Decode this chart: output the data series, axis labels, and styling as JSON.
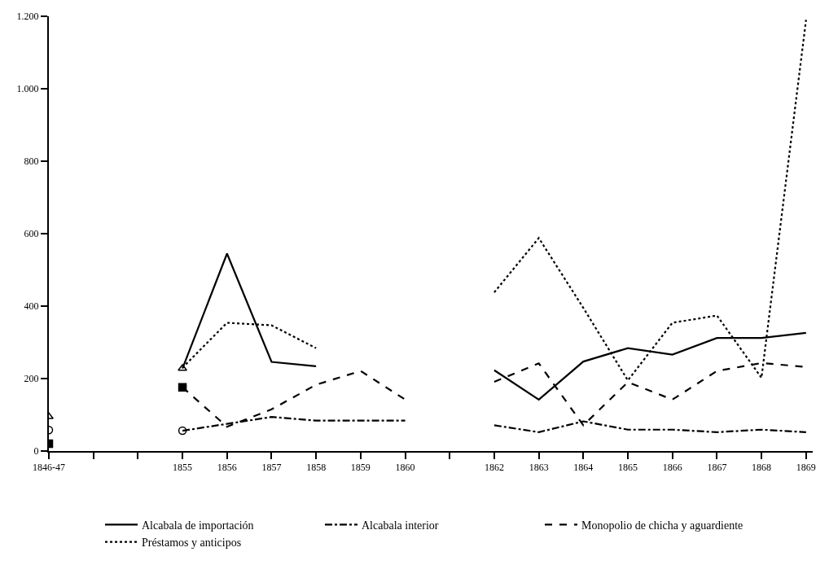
{
  "chart_data": {
    "type": "line",
    "categories": [
      "1846-47",
      null,
      null,
      "1855",
      "1856",
      "1857",
      "1858",
      "1859",
      "1860",
      null,
      "1862",
      "1863",
      "1864",
      "1865",
      "1866",
      "1867",
      "1868",
      "1869"
    ],
    "ylim": [
      0,
      1200
    ],
    "yticks": [
      0,
      200,
      400,
      600,
      800,
      {
        "value": 1000,
        "label": "1.000"
      },
      {
        "value": 1200,
        "label": "1.200"
      }
    ],
    "legend": "bottom",
    "marker": "none",
    "series": [
      {
        "name": "Alcabala de importación",
        "color": "#000000",
        "line_style": "solid",
        "values": [
          null,
          null,
          null,
          228,
          545,
          246,
          234,
          null,
          null,
          null,
          223,
          142,
          247,
          284,
          266,
          312,
          312,
          326
        ]
      },
      {
        "name": "Alcabala interior",
        "color": "#000000",
        "line_style": "dashdot",
        "values": [
          null,
          null,
          null,
          56,
          75,
          94,
          84,
          84,
          84,
          null,
          71,
          52,
          82,
          59,
          59,
          52,
          59,
          52
        ]
      },
      {
        "name": "Monopolio de chicha y aguardiente",
        "color": "#000000",
        "line_style": "dashed",
        "values": [
          null,
          null,
          null,
          176,
          67,
          115,
          183,
          221,
          142,
          null,
          191,
          242,
          71,
          190,
          142,
          221,
          243,
          232
        ]
      },
      {
        "name": "Préstamos y anticipos",
        "color": "#000000",
        "line_style": "dotted",
        "values": [
          null,
          null,
          null,
          230,
          354,
          347,
          284,
          null,
          null,
          null,
          438,
          588,
          395,
          195,
          354,
          374,
          202,
          1190
        ]
      },
      {
        "type": "scatter",
        "marker": "triangle",
        "color": "#000000",
        "values": [
          95,
          null,
          null,
          228,
          null,
          null,
          null,
          null,
          null,
          null,
          null,
          null,
          null,
          null,
          null,
          null,
          null,
          null
        ]
      },
      {
        "type": "scatter",
        "marker": "circle",
        "color": "#000000",
        "values": [
          58,
          null,
          null,
          56,
          null,
          null,
          null,
          null,
          null,
          null,
          null,
          null,
          null,
          null,
          null,
          null,
          null,
          null
        ]
      },
      {
        "type": "scatter",
        "marker": "square",
        "color": "#000000",
        "values": [
          20,
          null,
          null,
          176,
          null,
          null,
          null,
          null,
          null,
          null,
          null,
          null,
          null,
          null,
          null,
          null,
          null,
          null
        ]
      }
    ]
  }
}
